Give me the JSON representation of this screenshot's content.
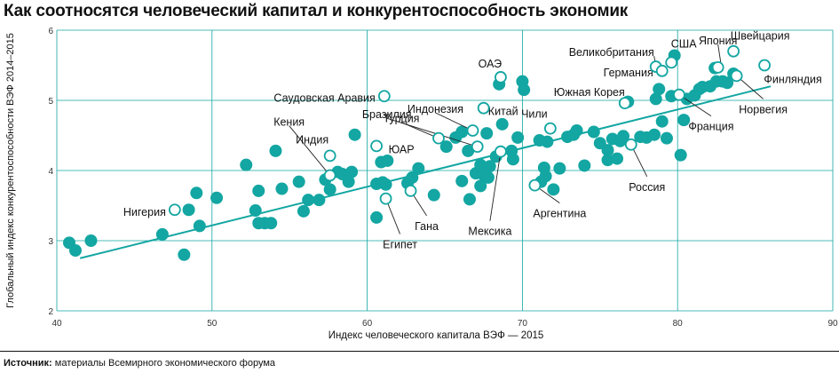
{
  "title": "Как соотносятся человеческий капитал и конкурентоспособность экономик",
  "source": {
    "label": "Источник:",
    "text": "материалы Всемирного экономического форума"
  },
  "colors": {
    "accent": "#13a6a2",
    "grid": "#13a6a2",
    "axis": "#777777",
    "text": "#111111",
    "hollow_fill": "#ffffff"
  },
  "chart_data": {
    "type": "scatter",
    "xlabel": "Индекс человеческого капитала ВЭФ — 2015",
    "ylabel": "Глобальный индекс конкурентоспособности ВЭФ 2014–2015",
    "xlim": [
      40,
      90
    ],
    "ylim": [
      2,
      6
    ],
    "xticks": [
      40,
      50,
      60,
      70,
      80,
      90
    ],
    "yticks": [
      2,
      3,
      4,
      5,
      6
    ],
    "grid": true,
    "trendline": {
      "x": [
        41.5,
        86
      ],
      "y": [
        2.75,
        5.2
      ]
    },
    "labeled_points": [
      {
        "label": "Великобритания",
        "x": 78.6,
        "y": 5.48
      },
      {
        "label": "США",
        "x": 79.6,
        "y": 5.54
      },
      {
        "label": "Япония",
        "x": 82.6,
        "y": 5.47
      },
      {
        "label": "Швейцария",
        "x": 83.6,
        "y": 5.7
      },
      {
        "label": "Германия",
        "x": 79.0,
        "y": 5.42
      },
      {
        "label": "Финляндия",
        "x": 85.6,
        "y": 5.5
      },
      {
        "label": "Норвегия",
        "x": 83.8,
        "y": 5.35
      },
      {
        "label": "ОАЭ",
        "x": 68.6,
        "y": 5.33
      },
      {
        "label": "Южная Корея",
        "x": 76.6,
        "y": 4.96
      },
      {
        "label": "Франция",
        "x": 80.1,
        "y": 5.08
      },
      {
        "label": "Саудовская Аравия",
        "x": 61.1,
        "y": 5.06
      },
      {
        "label": "Индонезия",
        "x": 66.8,
        "y": 4.57
      },
      {
        "label": "Китай",
        "x": 67.5,
        "y": 4.89
      },
      {
        "label": "Чили",
        "x": 71.8,
        "y": 4.6
      },
      {
        "label": "Турция",
        "x": 64.6,
        "y": 4.46
      },
      {
        "label": "Бразилия",
        "x": 67.1,
        "y": 4.34
      },
      {
        "label": "Кения",
        "x": 57.6,
        "y": 3.93
      },
      {
        "label": "Индия",
        "x": 57.6,
        "y": 4.21
      },
      {
        "label": "ЮАР",
        "x": 60.6,
        "y": 4.35
      },
      {
        "label": "Мексика",
        "x": 68.6,
        "y": 4.27
      },
      {
        "label": "Россия",
        "x": 77.0,
        "y": 4.37
      },
      {
        "label": "Аргентина",
        "x": 70.8,
        "y": 3.79
      },
      {
        "label": "Нигерия",
        "x": 47.6,
        "y": 3.44
      },
      {
        "label": "Гана",
        "x": 62.8,
        "y": 3.71
      },
      {
        "label": "Египет",
        "x": 61.2,
        "y": 3.6
      }
    ],
    "points": [
      {
        "x": 40.8,
        "y": 2.97
      },
      {
        "x": 41.2,
        "y": 2.86
      },
      {
        "x": 42.2,
        "y": 3.0
      },
      {
        "x": 46.8,
        "y": 3.09
      },
      {
        "x": 48.2,
        "y": 2.8
      },
      {
        "x": 48.5,
        "y": 3.44
      },
      {
        "x": 49.0,
        "y": 3.68
      },
      {
        "x": 49.2,
        "y": 3.21
      },
      {
        "x": 50.3,
        "y": 3.61
      },
      {
        "x": 52.2,
        "y": 4.08
      },
      {
        "x": 52.8,
        "y": 3.43
      },
      {
        "x": 53.0,
        "y": 3.71
      },
      {
        "x": 53.0,
        "y": 3.25
      },
      {
        "x": 53.4,
        "y": 3.25
      },
      {
        "x": 53.8,
        "y": 3.25
      },
      {
        "x": 54.1,
        "y": 4.28
      },
      {
        "x": 54.5,
        "y": 3.74
      },
      {
        "x": 55.6,
        "y": 3.84
      },
      {
        "x": 55.9,
        "y": 3.42
      },
      {
        "x": 56.2,
        "y": 3.58
      },
      {
        "x": 56.9,
        "y": 3.58
      },
      {
        "x": 57.3,
        "y": 3.87
      },
      {
        "x": 57.6,
        "y": 3.73
      },
      {
        "x": 58.1,
        "y": 3.98
      },
      {
        "x": 58.4,
        "y": 3.95
      },
      {
        "x": 58.8,
        "y": 3.84
      },
      {
        "x": 59.0,
        "y": 3.98
      },
      {
        "x": 59.2,
        "y": 4.51
      },
      {
        "x": 60.6,
        "y": 3.81
      },
      {
        "x": 60.6,
        "y": 3.33
      },
      {
        "x": 60.9,
        "y": 4.12
      },
      {
        "x": 61.0,
        "y": 3.83
      },
      {
        "x": 61.2,
        "y": 3.8
      },
      {
        "x": 61.3,
        "y": 4.14
      },
      {
        "x": 62.6,
        "y": 3.82
      },
      {
        "x": 62.9,
        "y": 3.9
      },
      {
        "x": 63.3,
        "y": 4.03
      },
      {
        "x": 64.3,
        "y": 3.65
      },
      {
        "x": 65.1,
        "y": 4.34
      },
      {
        "x": 65.7,
        "y": 4.47
      },
      {
        "x": 66.1,
        "y": 4.55
      },
      {
        "x": 66.1,
        "y": 3.85
      },
      {
        "x": 66.5,
        "y": 4.28
      },
      {
        "x": 66.6,
        "y": 3.59
      },
      {
        "x": 67.0,
        "y": 3.96
      },
      {
        "x": 67.3,
        "y": 4.08
      },
      {
        "x": 67.3,
        "y": 3.78
      },
      {
        "x": 67.5,
        "y": 3.94
      },
      {
        "x": 67.7,
        "y": 4.53
      },
      {
        "x": 67.8,
        "y": 3.9
      },
      {
        "x": 67.9,
        "y": 4.06
      },
      {
        "x": 68.3,
        "y": 4.2
      },
      {
        "x": 68.5,
        "y": 5.23
      },
      {
        "x": 68.7,
        "y": 4.66
      },
      {
        "x": 69.3,
        "y": 4.28
      },
      {
        "x": 69.4,
        "y": 4.16
      },
      {
        "x": 69.7,
        "y": 4.47
      },
      {
        "x": 70.0,
        "y": 5.27
      },
      {
        "x": 70.1,
        "y": 5.15
      },
      {
        "x": 71.1,
        "y": 4.43
      },
      {
        "x": 71.2,
        "y": 3.84
      },
      {
        "x": 71.4,
        "y": 4.04
      },
      {
        "x": 71.5,
        "y": 3.92
      },
      {
        "x": 71.6,
        "y": 4.41
      },
      {
        "x": 72.0,
        "y": 3.73
      },
      {
        "x": 72.4,
        "y": 4.03
      },
      {
        "x": 72.9,
        "y": 4.48
      },
      {
        "x": 73.3,
        "y": 4.51
      },
      {
        "x": 73.5,
        "y": 4.57
      },
      {
        "x": 74.0,
        "y": 4.07
      },
      {
        "x": 74.6,
        "y": 4.55
      },
      {
        "x": 75.0,
        "y": 4.39
      },
      {
        "x": 75.5,
        "y": 4.29
      },
      {
        "x": 75.5,
        "y": 4.15
      },
      {
        "x": 75.8,
        "y": 4.45
      },
      {
        "x": 76.1,
        "y": 4.17
      },
      {
        "x": 76.3,
        "y": 4.42
      },
      {
        "x": 76.5,
        "y": 4.49
      },
      {
        "x": 76.8,
        "y": 4.98
      },
      {
        "x": 77.6,
        "y": 4.48
      },
      {
        "x": 78.0,
        "y": 4.47
      },
      {
        "x": 78.5,
        "y": 4.51
      },
      {
        "x": 78.6,
        "y": 5.02
      },
      {
        "x": 78.8,
        "y": 5.16
      },
      {
        "x": 79.0,
        "y": 4.7
      },
      {
        "x": 79.3,
        "y": 4.46
      },
      {
        "x": 79.6,
        "y": 5.06
      },
      {
        "x": 79.8,
        "y": 5.64
      },
      {
        "x": 80.2,
        "y": 4.22
      },
      {
        "x": 80.4,
        "y": 4.72
      },
      {
        "x": 80.6,
        "y": 5.02
      },
      {
        "x": 81.1,
        "y": 5.07
      },
      {
        "x": 81.4,
        "y": 5.16
      },
      {
        "x": 81.6,
        "y": 5.19
      },
      {
        "x": 82.1,
        "y": 5.2
      },
      {
        "x": 82.4,
        "y": 5.46
      },
      {
        "x": 82.5,
        "y": 5.27
      },
      {
        "x": 82.9,
        "y": 5.27
      },
      {
        "x": 83.2,
        "y": 5.25
      },
      {
        "x": 83.6,
        "y": 5.38
      }
    ]
  }
}
